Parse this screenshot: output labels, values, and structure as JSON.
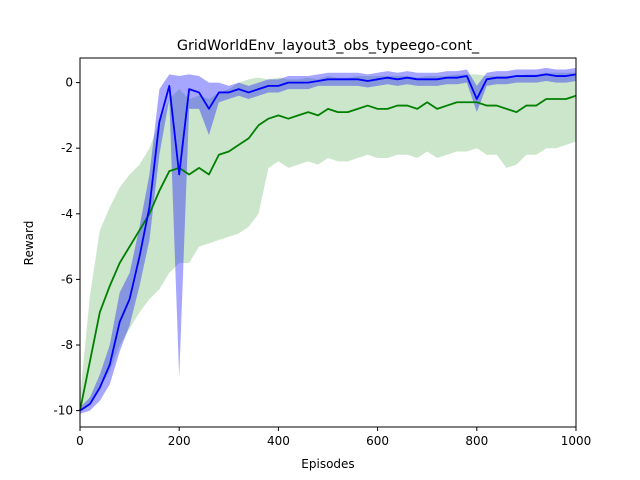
{
  "chart_data": {
    "type": "line",
    "title": "GridWorldEnv_layout3_obs_typeego-cont_",
    "x_label": "Episodes",
    "y_label": "Reward",
    "x": [
      0,
      20,
      40,
      60,
      80,
      100,
      120,
      140,
      160,
      180,
      200,
      220,
      240,
      260,
      280,
      300,
      320,
      340,
      360,
      380,
      400,
      420,
      440,
      460,
      480,
      500,
      520,
      540,
      560,
      580,
      600,
      620,
      640,
      660,
      680,
      700,
      720,
      740,
      760,
      780,
      800,
      820,
      840,
      860,
      880,
      900,
      920,
      940,
      960,
      980,
      1000
    ],
    "xlim": [
      0,
      1000
    ],
    "xticks": [
      0,
      200,
      400,
      600,
      800,
      1000
    ],
    "ylim": [
      -10.5,
      0.75
    ],
    "yticks": [
      -10,
      -8,
      -6,
      -4,
      -2,
      0
    ],
    "series": [
      {
        "color": "#008000",
        "values": [
          -10,
          -8.5,
          -7,
          -6.2,
          -5.5,
          -5,
          -4.5,
          -4,
          -3.3,
          -2.7,
          -2.6,
          -2.8,
          -2.6,
          -2.8,
          -2.2,
          -2.1,
          -1.9,
          -1.7,
          -1.3,
          -1.1,
          -1.0,
          -1.1,
          -1.0,
          -0.9,
          -1.0,
          -0.8,
          -0.9,
          -0.9,
          -0.8,
          -0.7,
          -0.8,
          -0.8,
          -0.7,
          -0.7,
          -0.8,
          -0.6,
          -0.8,
          -0.7,
          -0.6,
          -0.6,
          -0.6,
          -0.7,
          -0.7,
          -0.8,
          -0.9,
          -0.7,
          -0.7,
          -0.5,
          -0.5,
          -0.5,
          -0.4
        ],
        "lower": [
          -10,
          -9.8,
          -9.3,
          -8.8,
          -8,
          -7.5,
          -7,
          -6.6,
          -6.3,
          -5.8,
          -5.5,
          -5.5,
          -5.0,
          -4.9,
          -4.8,
          -4.7,
          -4.6,
          -4.4,
          -4.0,
          -2.6,
          -2.4,
          -2.6,
          -2.5,
          -2.4,
          -2.5,
          -2.3,
          -2.4,
          -2.4,
          -2.3,
          -2.2,
          -2.3,
          -2.3,
          -2.2,
          -2.2,
          -2.3,
          -2.1,
          -2.3,
          -2.2,
          -2.1,
          -2.1,
          -2.0,
          -2.2,
          -2.2,
          -2.6,
          -2.5,
          -2.2,
          -2.2,
          -2.0,
          -2.0,
          -1.9,
          -1.8
        ],
        "upper": [
          -9.6,
          -6.5,
          -4.5,
          -3.8,
          -3.2,
          -2.8,
          -2.5,
          -2.0,
          -1.2,
          -0.5,
          -0.2,
          -0.5,
          -0.4,
          -0.5,
          -0.3,
          -0.2,
          0,
          0.1,
          0.15,
          0.1,
          0.15,
          0.1,
          0.1,
          0.15,
          0.1,
          0.2,
          0.15,
          0.15,
          0.2,
          0.2,
          0.2,
          0.2,
          0.2,
          0.2,
          0.15,
          0.2,
          0.2,
          0.2,
          0.25,
          0.25,
          0.25,
          0.2,
          0.2,
          0.2,
          0.2,
          0.25,
          0.25,
          0.3,
          0.3,
          0.3,
          0.3
        ]
      },
      {
        "color": "#0000ff",
        "values": [
          -10,
          -9.8,
          -9.3,
          -8.6,
          -7.3,
          -6.6,
          -5.3,
          -3.8,
          -1.2,
          -0.1,
          -2.8,
          -0.2,
          -0.3,
          -0.8,
          -0.3,
          -0.3,
          -0.2,
          -0.3,
          -0.2,
          -0.1,
          -0.1,
          0,
          0,
          0,
          0.05,
          0.1,
          0.1,
          0.1,
          0.1,
          0.05,
          0.1,
          0.15,
          0.1,
          0.15,
          0.1,
          0.1,
          0.1,
          0.15,
          0.15,
          0.2,
          -0.5,
          0.1,
          0.15,
          0.15,
          0.2,
          0.2,
          0.2,
          0.25,
          0.2,
          0.2,
          0.25
        ],
        "lower": [
          -10.1,
          -10,
          -9.7,
          -9.2,
          -8.2,
          -7.4,
          -6.2,
          -4.8,
          -2.2,
          -0.5,
          -9.0,
          -0.8,
          -0.8,
          -1.6,
          -0.6,
          -0.5,
          -0.4,
          -0.5,
          -0.4,
          -0.3,
          -0.3,
          -0.2,
          -0.2,
          -0.2,
          -0.1,
          -0.1,
          -0.1,
          -0.1,
          -0.1,
          -0.15,
          -0.1,
          -0.05,
          -0.1,
          -0.05,
          -0.1,
          -0.1,
          -0.1,
          -0.05,
          -0.05,
          0,
          -0.9,
          -0.1,
          -0.05,
          -0.05,
          0,
          0,
          0,
          0.05,
          0,
          0,
          0.05
        ],
        "upper": [
          -9.9,
          -9.6,
          -8.9,
          -8.0,
          -6.4,
          -5.8,
          -4.4,
          -2.8,
          -0.2,
          0.25,
          0.2,
          0.25,
          0.2,
          0,
          0,
          -0.1,
          0,
          -0.1,
          0,
          0.1,
          0.1,
          0.2,
          0.2,
          0.2,
          0.25,
          0.3,
          0.3,
          0.3,
          0.3,
          0.25,
          0.3,
          0.35,
          0.3,
          0.35,
          0.3,
          0.3,
          0.3,
          0.35,
          0.35,
          0.4,
          -0.1,
          0.3,
          0.35,
          0.35,
          0.4,
          0.4,
          0.4,
          0.45,
          0.4,
          0.4,
          0.45
        ]
      }
    ]
  }
}
